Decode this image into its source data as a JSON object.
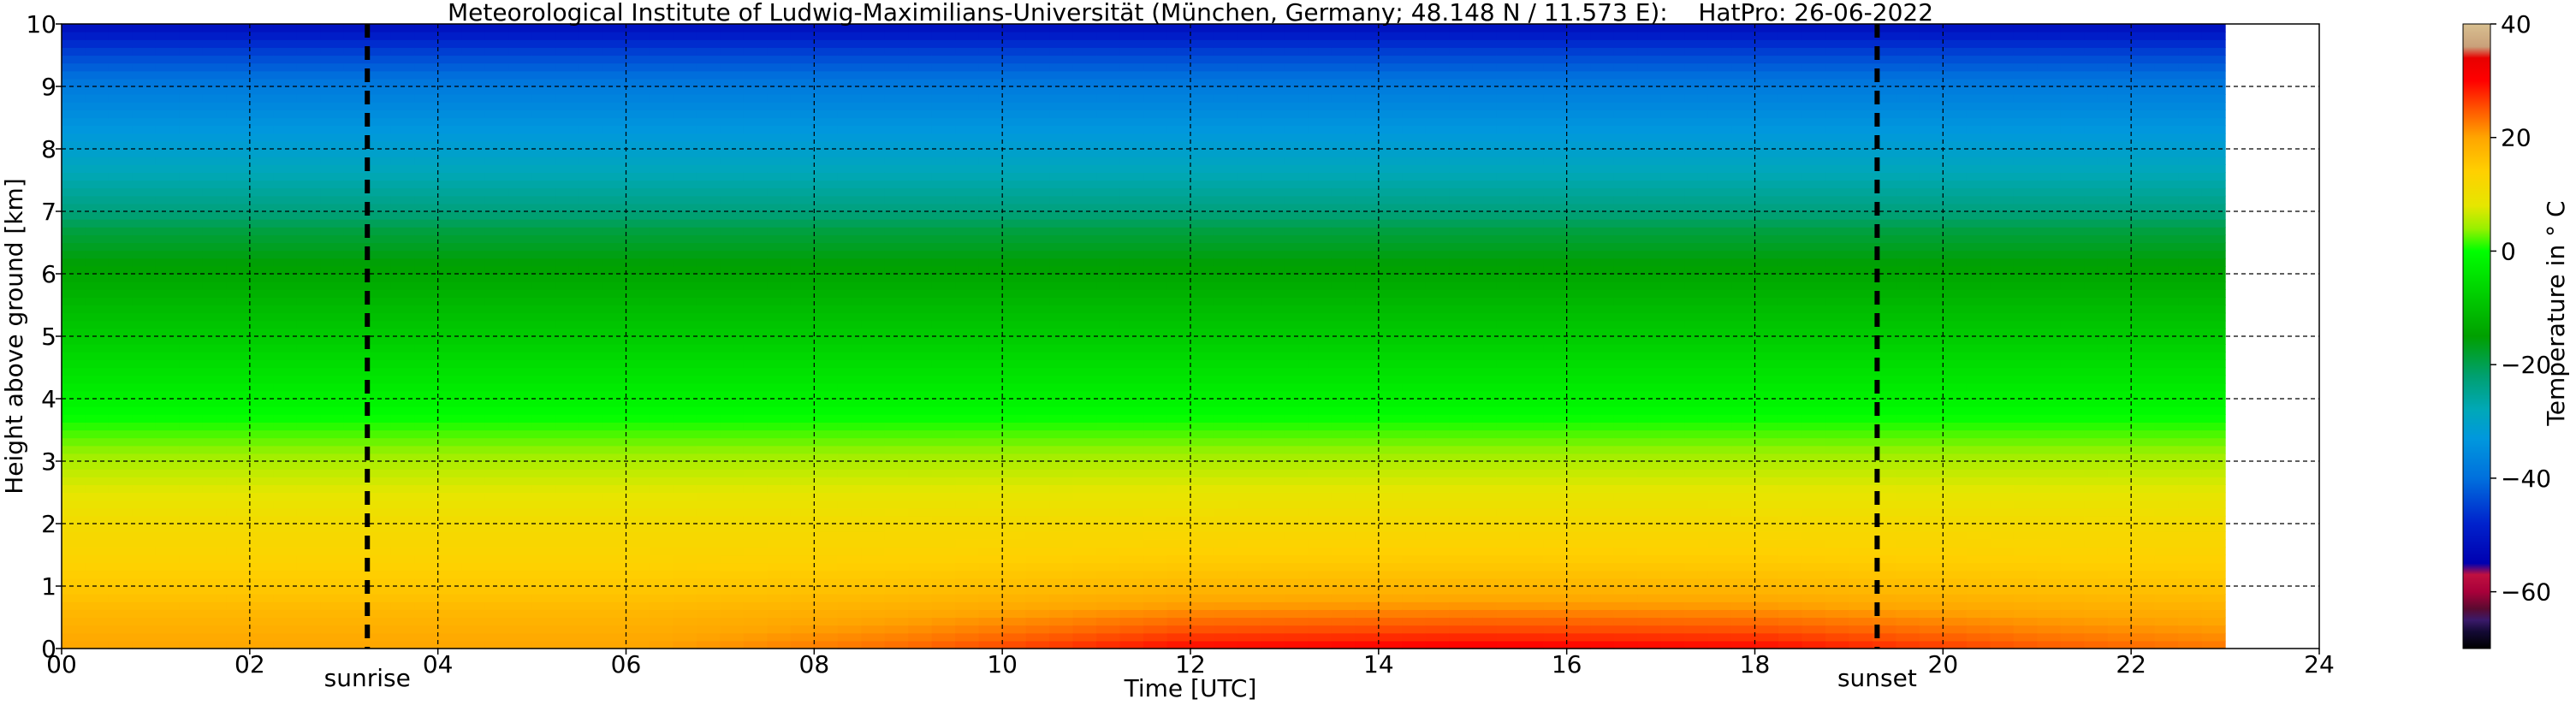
{
  "chart_data": {
    "type": "heatmap",
    "title": "Meteorological Institute of Ludwig-Maximilians-Universität (München, Germany; 48.148 N / 11.573 E):    HatPro: 26-06-2022",
    "xlabel": "Time [UTC]",
    "ylabel": "Height above ground [km]",
    "xlim": [
      0,
      24
    ],
    "ylim": [
      0,
      10
    ],
    "data_end_hour": 23,
    "x_ticks": [
      "00",
      "02",
      "04",
      "06",
      "08",
      "10",
      "12",
      "14",
      "16",
      "18",
      "20",
      "22",
      "24"
    ],
    "y_ticks": [
      "0",
      "1",
      "2",
      "3",
      "4",
      "5",
      "6",
      "7",
      "8",
      "9",
      "10"
    ],
    "grid": true,
    "grid_style": "dashed",
    "markers": [
      {
        "label": "sunrise",
        "hour": 3.25
      },
      {
        "label": "sunset",
        "hour": 19.3
      }
    ],
    "colorbar": {
      "label": "Temperature in ° C",
      "range": [
        -70,
        40
      ],
      "ticks": [
        "40",
        "20",
        "0",
        "−20",
        "−40",
        "−60"
      ],
      "tick_values": [
        40,
        20,
        0,
        -20,
        -40,
        -60
      ],
      "stops": [
        {
          "value": -70,
          "color": "#000000"
        },
        {
          "value": -67,
          "color": "#140a35"
        },
        {
          "value": -65,
          "color": "#3a1a6a"
        },
        {
          "value": -63,
          "color": "#5a0a30"
        },
        {
          "value": -60,
          "color": "#a8003a"
        },
        {
          "value": -57,
          "color": "#c01040"
        },
        {
          "value": -55,
          "color": "#0000b0"
        },
        {
          "value": -48,
          "color": "#0022cc"
        },
        {
          "value": -40,
          "color": "#0070dd"
        },
        {
          "value": -33,
          "color": "#0098dd"
        },
        {
          "value": -28,
          "color": "#00a8b8"
        },
        {
          "value": -22,
          "color": "#00a070"
        },
        {
          "value": -15,
          "color": "#00a000"
        },
        {
          "value": -8,
          "color": "#00cc00"
        },
        {
          "value": 0,
          "color": "#00ff00"
        },
        {
          "value": 4,
          "color": "#99f000"
        },
        {
          "value": 8,
          "color": "#e6e600"
        },
        {
          "value": 14,
          "color": "#ffd000"
        },
        {
          "value": 20,
          "color": "#ffa500"
        },
        {
          "value": 25,
          "color": "#ff5500"
        },
        {
          "value": 30,
          "color": "#ff0000"
        },
        {
          "value": 34,
          "color": "#e80000"
        },
        {
          "value": 36,
          "color": "#c9a07a"
        },
        {
          "value": 40,
          "color": "#d8c090"
        }
      ]
    },
    "temperature_profile": [
      {
        "height_km": 0.0,
        "temp_c": 20
      },
      {
        "height_km": 0.5,
        "temp_c": 18
      },
      {
        "height_km": 1.0,
        "temp_c": 15
      },
      {
        "height_km": 2.0,
        "temp_c": 11
      },
      {
        "height_km": 3.0,
        "temp_c": 5
      },
      {
        "height_km": 4.0,
        "temp_c": -2
      },
      {
        "height_km": 5.0,
        "temp_c": -8
      },
      {
        "height_km": 6.0,
        "temp_c": -14
      },
      {
        "height_km": 6.7,
        "temp_c": -19
      },
      {
        "height_km": 7.0,
        "temp_c": -23
      },
      {
        "height_km": 8.0,
        "temp_c": -31
      },
      {
        "height_km": 9.0,
        "temp_c": -38
      },
      {
        "height_km": 9.5,
        "temp_c": -44
      },
      {
        "height_km": 10.0,
        "temp_c": -52
      }
    ],
    "surface_warming": [
      {
        "hour": 0,
        "delta_c": 0
      },
      {
        "hour": 6,
        "delta_c": 0
      },
      {
        "hour": 9,
        "delta_c": 4
      },
      {
        "hour": 12,
        "delta_c": 10
      },
      {
        "hour": 15,
        "delta_c": 11
      },
      {
        "hour": 18,
        "delta_c": 10
      },
      {
        "hour": 21,
        "delta_c": 5
      },
      {
        "hour": 23,
        "delta_c": 3
      }
    ]
  }
}
